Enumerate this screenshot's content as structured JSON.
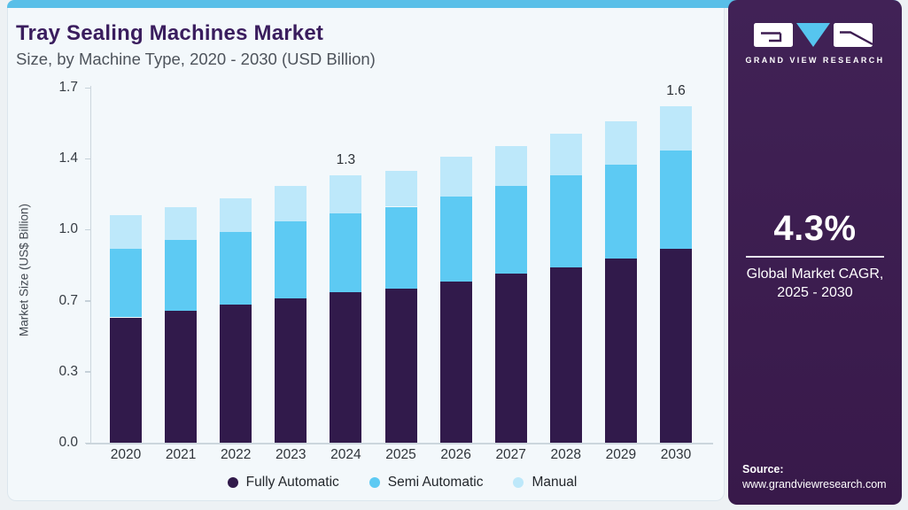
{
  "page": {
    "title": "Tray Sealing Machines Market",
    "subtitle": "Size, by Machine Type, 2020 - 2030 (USD Billion)"
  },
  "sidebar": {
    "logo_text": "GRAND VIEW RESEARCH",
    "cagr_value": "4.3%",
    "cagr_label_line1": "Global Market CAGR,",
    "cagr_label_line2": "2025 - 2030",
    "source_label": "Source:",
    "source_url": "www.grandviewresearch.com"
  },
  "colors": {
    "accent_strip": "#59bfe8",
    "sidebar_bg": "#3d1d51",
    "title_text": "#3a1d5e",
    "logo_triangle": "#56c5ef"
  },
  "chart_data": {
    "type": "bar",
    "stacked": true,
    "title": "Tray Sealing Machines Market Size, by Machine Type, 2020 - 2030 (USD Billion)",
    "categories": [
      "2020",
      "2021",
      "2022",
      "2023",
      "2024",
      "2025",
      "2026",
      "2027",
      "2028",
      "2029",
      "2030"
    ],
    "series": [
      {
        "name": "Fully Automatic",
        "color": "#311a4b",
        "values": [
          0.6,
          0.63,
          0.66,
          0.69,
          0.72,
          0.74,
          0.77,
          0.81,
          0.84,
          0.88,
          0.93
        ]
      },
      {
        "name": "Semi Automatic",
        "color": "#5dcaf3",
        "values": [
          0.33,
          0.34,
          0.35,
          0.37,
          0.38,
          0.39,
          0.41,
          0.42,
          0.44,
          0.45,
          0.47
        ]
      },
      {
        "name": "Manual",
        "color": "#bde8fa",
        "values": [
          0.16,
          0.16,
          0.16,
          0.17,
          0.18,
          0.17,
          0.19,
          0.19,
          0.2,
          0.21,
          0.21
        ]
      }
    ],
    "totals": [
      1.09,
      1.13,
      1.17,
      1.23,
      1.27,
      1.3,
      1.36,
      1.41,
      1.48,
      1.54,
      1.61
    ],
    "bar_labels": {
      "2024": "1.3",
      "2030": "1.6"
    },
    "ylabel": "Market Size (US$ Billion)",
    "ytick_labels": [
      "0.0",
      "0.3",
      "0.7",
      "1.0",
      "1.4",
      "1.7"
    ],
    "ytick_values": [
      0,
      0.34,
      0.68,
      1.02,
      1.36,
      1.7
    ],
    "ylim": [
      0,
      1.7
    ],
    "grid": false,
    "legend_position": "bottom"
  }
}
